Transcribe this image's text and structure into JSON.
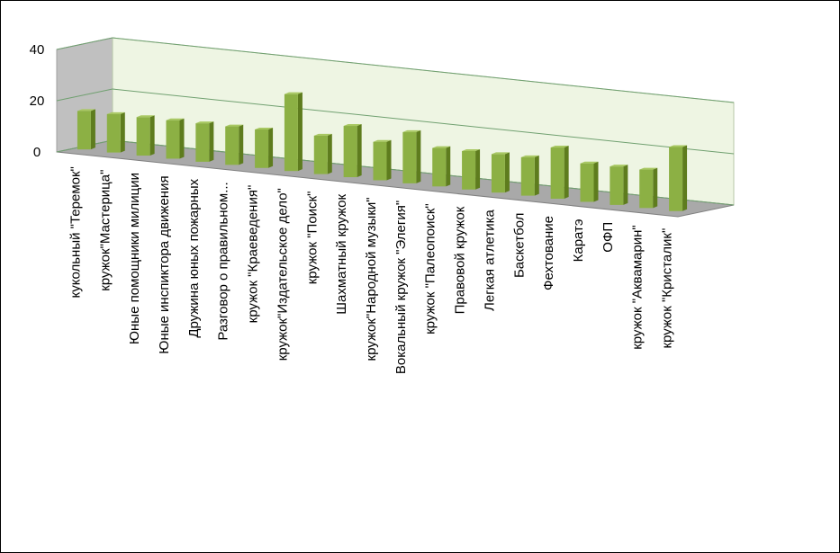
{
  "chart_data": {
    "type": "bar",
    "three_d": true,
    "grid": true,
    "ylim": [
      0,
      40
    ],
    "yticks": [
      "0",
      "20",
      "40"
    ],
    "categories": [
      "кукольный \"Теремок\"",
      "кружок\"Мастерица\"",
      "Юные помощники милиции",
      "Юные инспиктора движения",
      "Дружина юных пожарных",
      "Разговор о правильном...",
      "кружок \"Краеведения\"",
      "кружок\"Издательское дело\"",
      "кружок \"Поиск\"",
      "Шахматный кружок",
      "кружок\"Народной музыки\"",
      "Вокальный кружок \"Элегия\"",
      "кружок \"Палеопоиск\"",
      "Правовой кружок",
      "Легкая атлетика",
      "Баскетбол",
      "Фехтование",
      "Каратэ",
      "ОФП",
      "кружок \"Аквамарин\"",
      "кружок \"Кристалик\""
    ],
    "values": [
      15,
      15,
      15,
      15,
      15,
      15,
      15,
      30,
      15,
      20,
      15,
      20,
      15,
      15,
      15,
      15,
      20,
      15,
      15,
      15,
      25
    ],
    "colors": {
      "bar_front": "#8cb044",
      "bar_side": "#5e7c1e",
      "bar_top": "#a8c862",
      "back_wall": "#eef5e3",
      "side_wall": "#c0c0c0",
      "floor": "#a9a9a9",
      "grid": "#70a070"
    }
  }
}
